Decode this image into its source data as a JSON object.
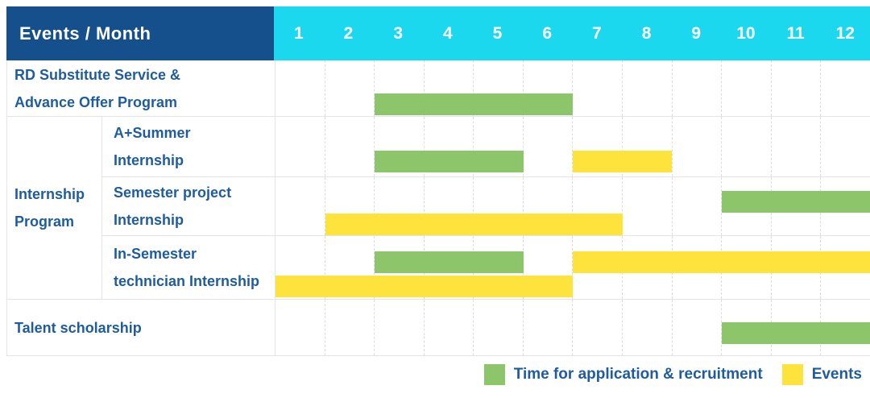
{
  "header": {
    "title": "Events / Month"
  },
  "colors": {
    "header_bg": "#15508d",
    "months_bg": "#1cd8ef",
    "label_text": "#1e5c9f",
    "recruitment_green": "#8dc56b",
    "events_yellow": "#fde33c"
  },
  "chart_data": {
    "type": "bar",
    "subtype": "gantt-schedule",
    "title": "Events / Month",
    "xlabel": "Month",
    "x_ticks": [
      "1",
      "2",
      "3",
      "4",
      "5",
      "6",
      "7",
      "8",
      "9",
      "10",
      "11",
      "12"
    ],
    "x_range": [
      1,
      12
    ],
    "grid": "dashed-vertical",
    "legend_position": "bottom-right",
    "legend": [
      {
        "key": "recruitment",
        "label": "Time for application & recruitment",
        "color": "#8dc56b"
      },
      {
        "key": "events",
        "label": "Events",
        "color": "#fde33c"
      }
    ],
    "rows": [
      {
        "label": "RD Substitute Service &\nAdvance Offer Program",
        "group": null,
        "bars": [
          {
            "type": "recruitment",
            "start_month": 3,
            "end_month": 6,
            "lane": "single"
          }
        ]
      },
      {
        "label": "A+Summer\nInternship",
        "group": "Internship\nProgram",
        "bars": [
          {
            "type": "recruitment",
            "start_month": 3,
            "end_month": 5,
            "lane": "single"
          },
          {
            "type": "events",
            "start_month": 7,
            "end_month": 8,
            "lane": "single"
          }
        ]
      },
      {
        "label": "Semester project\nInternship",
        "group": "Internship\nProgram",
        "bars": [
          {
            "type": "recruitment",
            "start_month": 10,
            "end_month": 12,
            "lane": "top"
          },
          {
            "type": "events",
            "start_month": 2,
            "end_month": 7,
            "lane": "bottom"
          }
        ]
      },
      {
        "label": "In-Semester\ntechnician Internship",
        "group": "Internship\nProgram",
        "bars": [
          {
            "type": "recruitment",
            "start_month": 3,
            "end_month": 5,
            "lane": "top"
          },
          {
            "type": "events",
            "start_month": 7,
            "end_month": 12,
            "lane": "top"
          },
          {
            "type": "events",
            "start_month": 1,
            "end_month": 6,
            "lane": "bottom"
          }
        ]
      },
      {
        "label": "Talent scholarship",
        "group": null,
        "bars": [
          {
            "type": "recruitment",
            "start_month": 10,
            "end_month": 12,
            "lane": "single"
          }
        ]
      }
    ]
  }
}
